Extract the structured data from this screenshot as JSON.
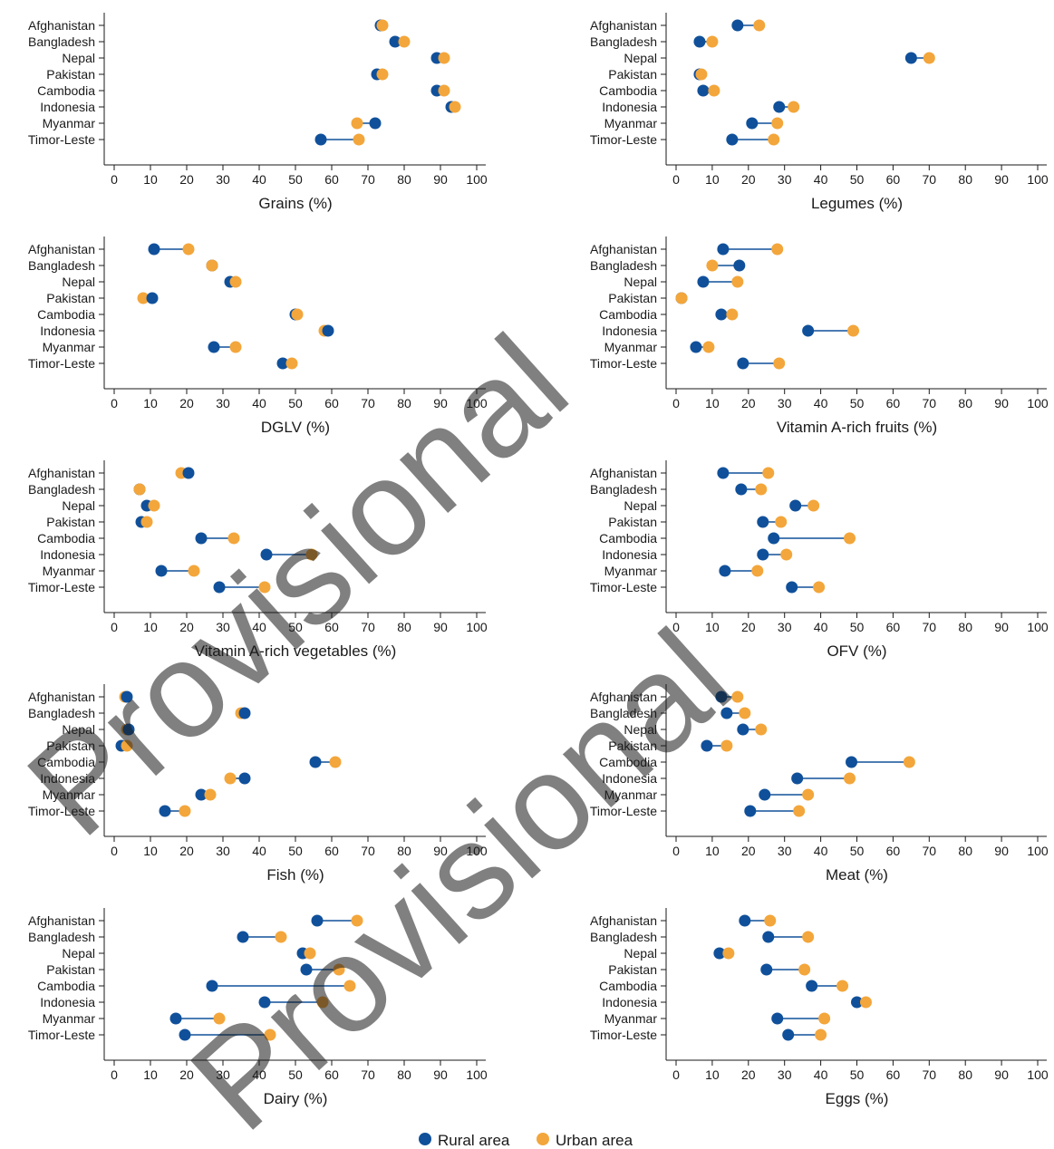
{
  "colors": {
    "rural": "#10509a",
    "urban": "#f3a63b",
    "connector": "#10509a",
    "axis": "#1a1a1a",
    "watermark": "#cfcfcf"
  },
  "categories": [
    "Afghanistan",
    "Bangladesh",
    "Nepal",
    "Pakistan",
    "Cambodia",
    "Indonesia",
    "Myanmar",
    "Timor-Leste"
  ],
  "x_ticks": [
    "0",
    "10",
    "20",
    "30",
    "40",
    "50",
    "60",
    "70",
    "80",
    "90",
    "100"
  ],
  "legend": {
    "rural": "Rural area",
    "urban": "Urban area"
  },
  "watermark": "Provisional",
  "chart_data": [
    {
      "type": "dumbbell",
      "xlabel": "Grains (%)",
      "xlim": [
        0,
        100
      ],
      "series": [
        {
          "name": "Rural area",
          "values": [
            73.5,
            77.5,
            89,
            72.5,
            89,
            93,
            72,
            57
          ]
        },
        {
          "name": "Urban area",
          "values": [
            74,
            80,
            91,
            74,
            91,
            94,
            67,
            67.5
          ]
        }
      ]
    },
    {
      "type": "dumbbell",
      "xlabel": "Legumes (%)",
      "xlim": [
        0,
        100
      ],
      "series": [
        {
          "name": "Rural area",
          "values": [
            17,
            6.5,
            65,
            6.5,
            7.5,
            28.5,
            21,
            15.5
          ]
        },
        {
          "name": "Urban area",
          "values": [
            23,
            10,
            70,
            7,
            10.5,
            32.5,
            28,
            27
          ]
        }
      ]
    },
    {
      "type": "dumbbell",
      "xlabel": "DGLV (%)",
      "xlim": [
        0,
        100
      ],
      "series": [
        {
          "name": "Rural area",
          "values": [
            11,
            27,
            32,
            10.5,
            50,
            59,
            27.5,
            46.5
          ]
        },
        {
          "name": "Urban area",
          "values": [
            20.5,
            27,
            33.5,
            8,
            50.5,
            58,
            33.5,
            49
          ]
        }
      ]
    },
    {
      "type": "dumbbell",
      "xlabel": "Vitamin A-rich fruits (%)",
      "xlim": [
        0,
        100
      ],
      "series": [
        {
          "name": "Rural area",
          "values": [
            13,
            17.5,
            7.5,
            1.5,
            12.5,
            36.5,
            5.5,
            18.5
          ]
        },
        {
          "name": "Urban area",
          "values": [
            28,
            10,
            17,
            1.5,
            15.5,
            49,
            9,
            28.5
          ]
        }
      ]
    },
    {
      "type": "dumbbell",
      "xlabel": "Vitamin A-rich vegetables (%)",
      "xlim": [
        0,
        100
      ],
      "series": [
        {
          "name": "Rural area",
          "values": [
            20.5,
            7,
            9,
            7.5,
            24,
            42,
            13,
            29
          ]
        },
        {
          "name": "Urban area",
          "values": [
            18.5,
            7,
            11,
            9,
            33,
            54.5,
            22,
            41.5
          ]
        }
      ]
    },
    {
      "type": "dumbbell",
      "xlabel": "OFV (%)",
      "xlim": [
        0,
        100
      ],
      "series": [
        {
          "name": "Rural area",
          "values": [
            13,
            18,
            33,
            24,
            27,
            24,
            13.5,
            32
          ]
        },
        {
          "name": "Urban area",
          "values": [
            25.5,
            23.5,
            38,
            29,
            48,
            30.5,
            22.5,
            39.5
          ]
        }
      ]
    },
    {
      "type": "dumbbell",
      "xlabel": "Fish (%)",
      "xlim": [
        0,
        100
      ],
      "series": [
        {
          "name": "Rural area",
          "values": [
            3.5,
            36,
            4,
            2,
            55.5,
            36,
            24,
            14
          ]
        },
        {
          "name": "Urban area",
          "values": [
            3,
            35,
            3.5,
            3.5,
            61,
            32,
            26.5,
            19.5
          ]
        }
      ]
    },
    {
      "type": "dumbbell",
      "xlabel": "Meat (%)",
      "xlim": [
        0,
        100
      ],
      "series": [
        {
          "name": "Rural area",
          "values": [
            12.5,
            14,
            18.5,
            8.5,
            48.5,
            33.5,
            24.5,
            20.5
          ]
        },
        {
          "name": "Urban area",
          "values": [
            17,
            19,
            23.5,
            14,
            64.5,
            48,
            36.5,
            34
          ]
        }
      ]
    },
    {
      "type": "dumbbell",
      "xlabel": "Dairy (%)",
      "xlim": [
        0,
        100
      ],
      "series": [
        {
          "name": "Rural area",
          "values": [
            56,
            35.5,
            52,
            53,
            27,
            41.5,
            17,
            19.5
          ]
        },
        {
          "name": "Urban area",
          "values": [
            67,
            46,
            54,
            62,
            65,
            57.5,
            29,
            43
          ]
        }
      ]
    },
    {
      "type": "dumbbell",
      "xlabel": "Eggs (%)",
      "xlim": [
        0,
        100
      ],
      "series": [
        {
          "name": "Rural area",
          "values": [
            19,
            25.5,
            12,
            25,
            37.5,
            50,
            28,
            31
          ]
        },
        {
          "name": "Urban area",
          "values": [
            26,
            36.5,
            14.5,
            35.5,
            46,
            52.5,
            41,
            40
          ]
        }
      ]
    }
  ]
}
